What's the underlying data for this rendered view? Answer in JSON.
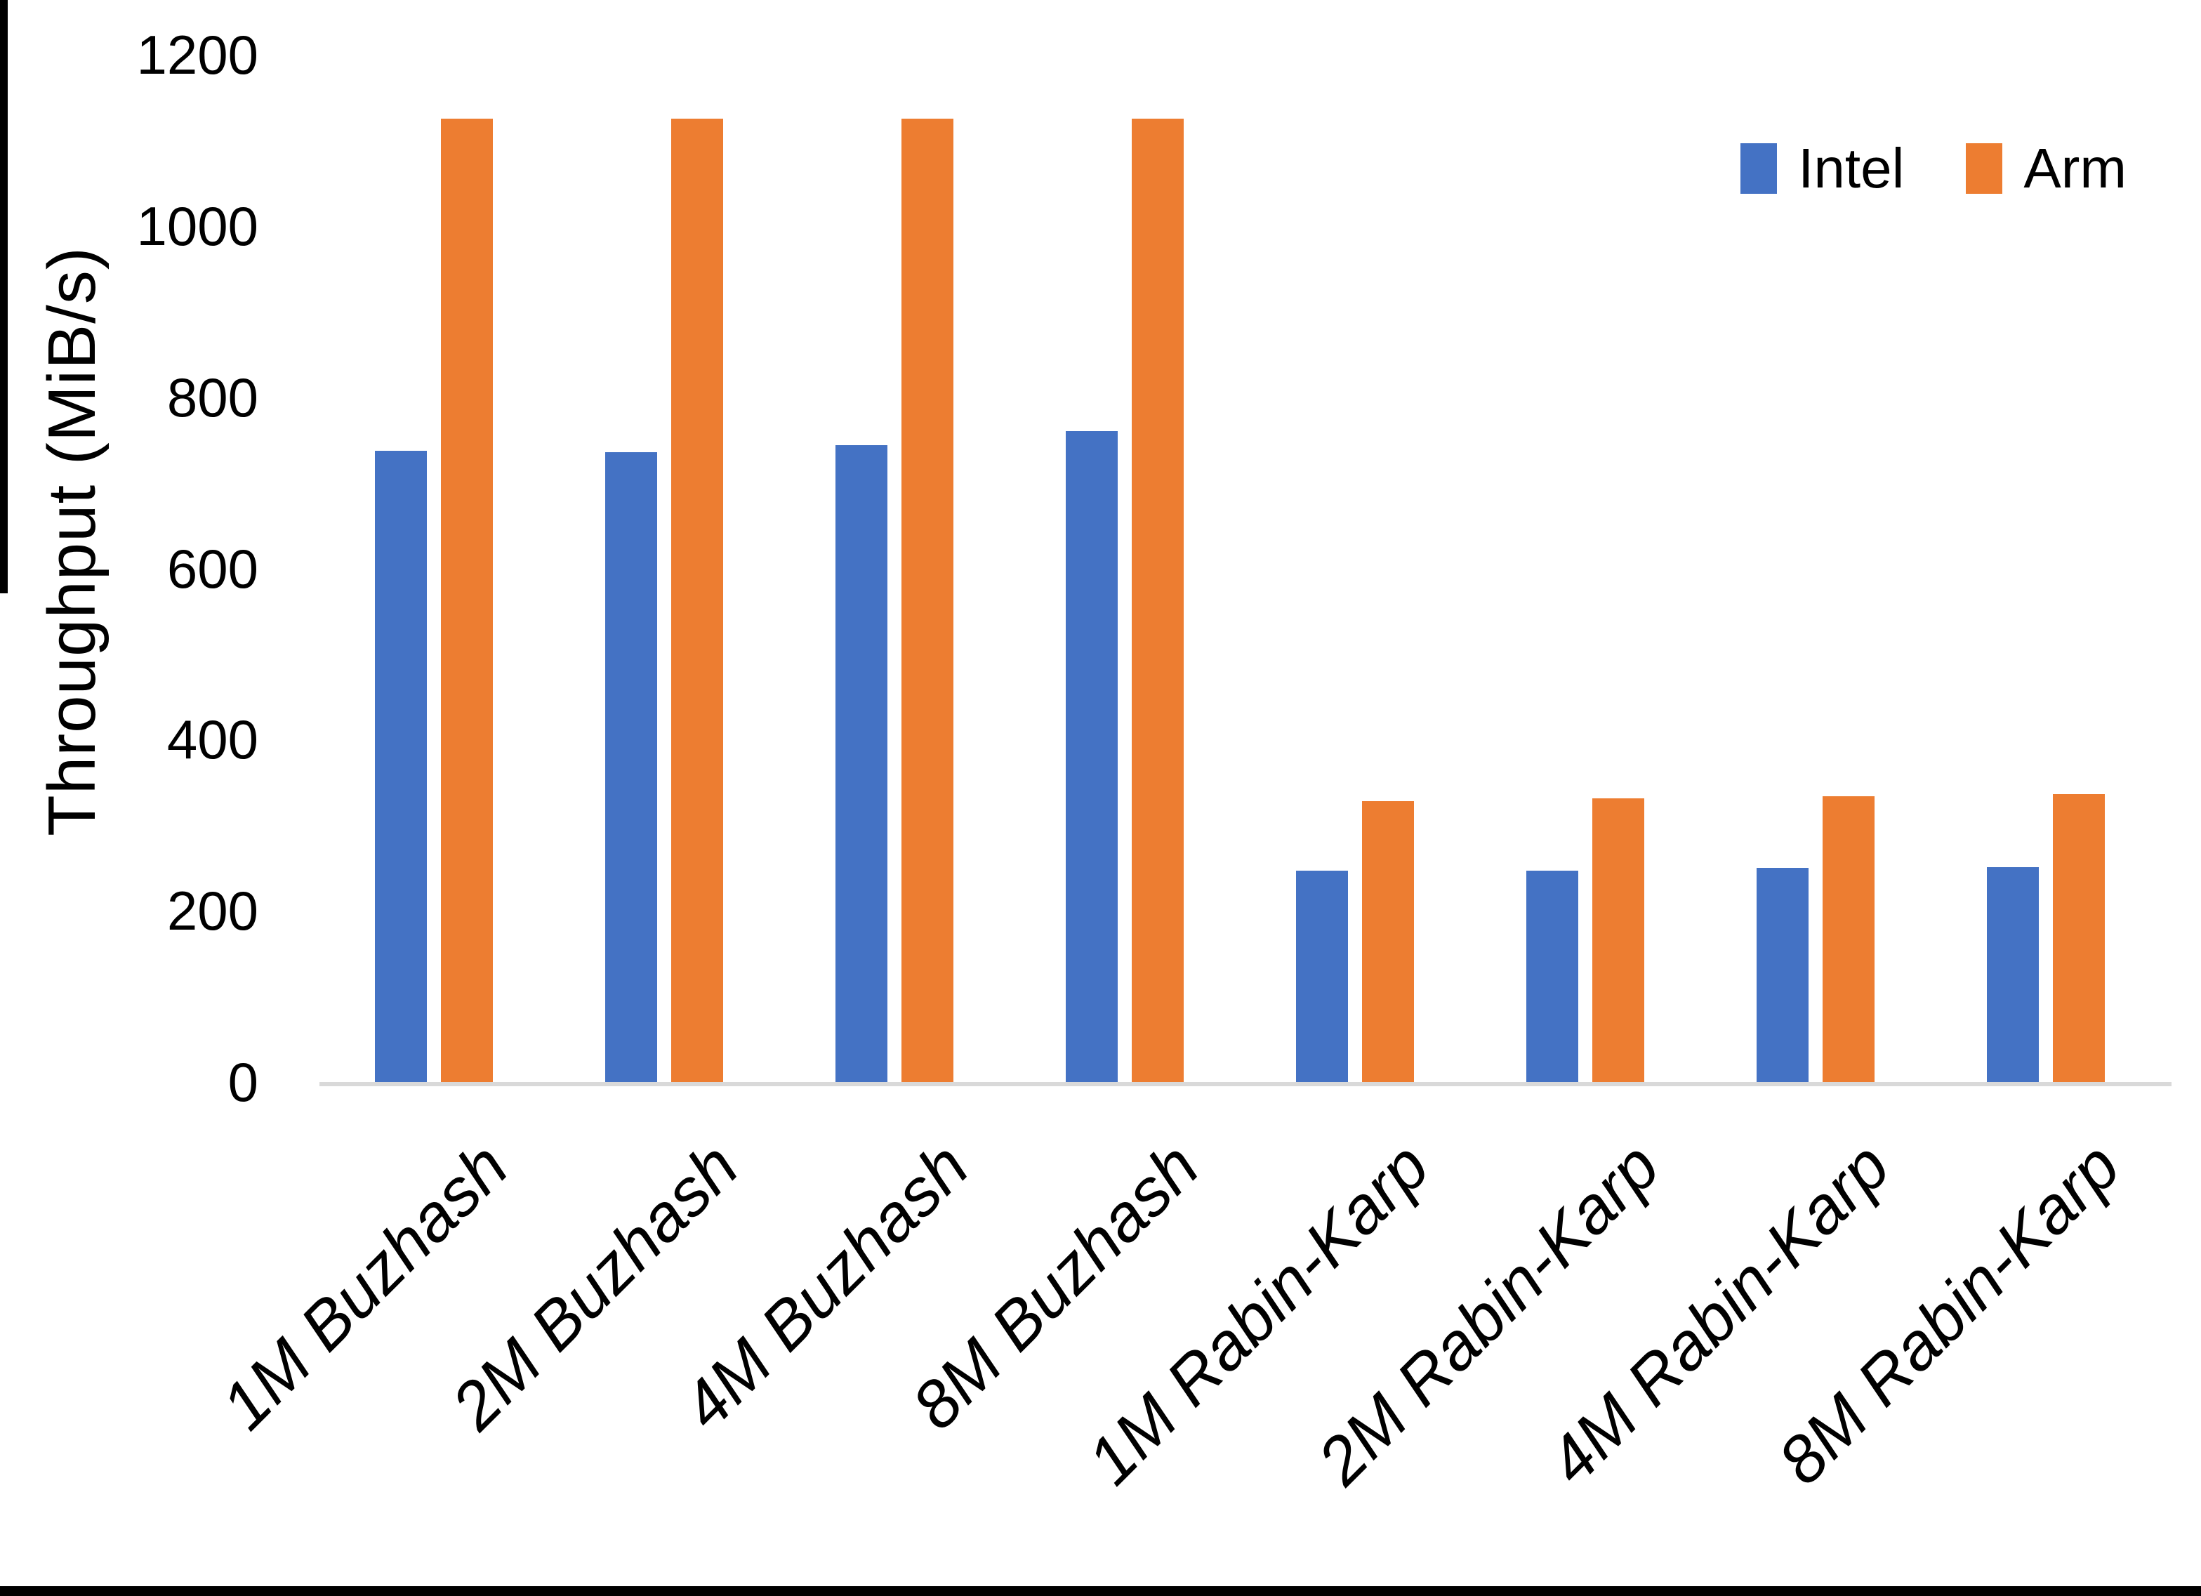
{
  "chart_data": {
    "type": "bar",
    "title": "",
    "xlabel": "",
    "ylabel": "Throughput (MiB/s)",
    "ylim": [
      0,
      1200
    ],
    "yticks": [
      0,
      200,
      400,
      600,
      800,
      1000,
      1200
    ],
    "grid": false,
    "legend_position": "top-right",
    "categories": [
      "1M Buzhash",
      "2M Buzhash",
      "4M Buzhash",
      "8M Buzhash",
      "1M Rabin-Karp",
      "2M Rabin-Karp",
      "4M Rabin-Karp",
      "8M Rabin-Karp"
    ],
    "series": [
      {
        "name": "Intel",
        "color": "#4472C4",
        "values": [
          737,
          736,
          744,
          760,
          247,
          247,
          250,
          251
        ]
      },
      {
        "name": "Arm",
        "color": "#ED7D31",
        "values": [
          1125,
          1125,
          1125,
          1125,
          328,
          331,
          334,
          336
        ]
      }
    ],
    "axis_line_color": "#D9D9D9",
    "text_color": "#000000",
    "background_color": "#FFFFFF"
  }
}
